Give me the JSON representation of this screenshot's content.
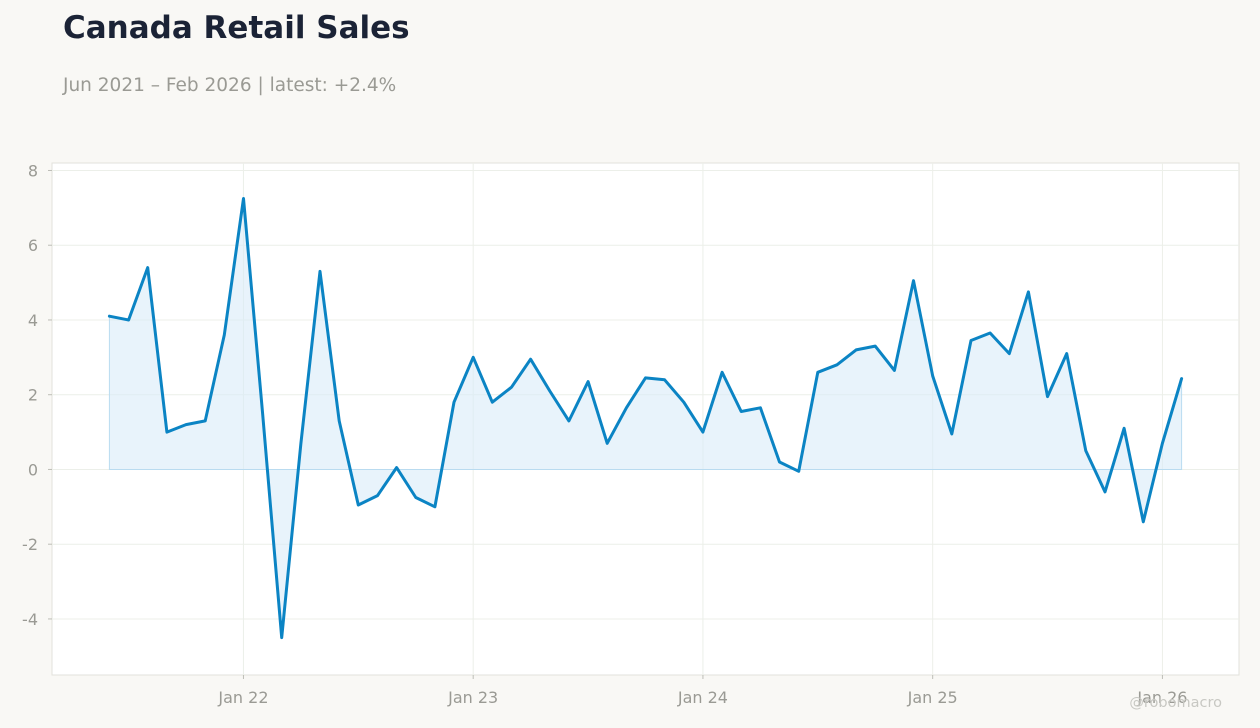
{
  "title": "Canada Retail Sales",
  "subtitle": "Jun 2021 – Feb 2026 | latest: +2.4%",
  "watermark": "@robomacro",
  "colors": {
    "line": "#0b84c4",
    "fill": "#d9ebf8",
    "background": "#f9f8f5",
    "plot_background": "#ffffff",
    "grid": "#ecefe9"
  },
  "chart_data": {
    "type": "area",
    "x": [
      "2021-06",
      "2021-07",
      "2021-08",
      "2021-09",
      "2021-10",
      "2021-11",
      "2021-12",
      "2022-01",
      "2022-02",
      "2022-03",
      "2022-04",
      "2022-05",
      "2022-06",
      "2022-07",
      "2022-08",
      "2022-09",
      "2022-10",
      "2022-11",
      "2022-12",
      "2023-01",
      "2023-02",
      "2023-03",
      "2023-04",
      "2023-05",
      "2023-06",
      "2023-07",
      "2023-08",
      "2023-09",
      "2023-10",
      "2023-11",
      "2023-12",
      "2024-01",
      "2024-02",
      "2024-03",
      "2024-04",
      "2024-05",
      "2024-06",
      "2024-07",
      "2024-08",
      "2024-09",
      "2024-10",
      "2024-11",
      "2024-12",
      "2025-01",
      "2025-02",
      "2025-03",
      "2025-04",
      "2025-05",
      "2025-06",
      "2025-07",
      "2025-08",
      "2025-09",
      "2025-10",
      "2025-11",
      "2025-12",
      "2026-01",
      "2026-02"
    ],
    "y": [
      4.1,
      4.0,
      5.4,
      1.0,
      1.2,
      1.3,
      3.6,
      7.25,
      1.5,
      -4.5,
      0.7,
      5.3,
      1.3,
      -0.95,
      -0.7,
      0.05,
      -0.75,
      -1.0,
      1.8,
      3.0,
      1.8,
      2.2,
      2.95,
      2.1,
      1.3,
      2.35,
      0.7,
      1.65,
      2.45,
      2.4,
      1.8,
      1.0,
      2.6,
      1.55,
      1.65,
      0.2,
      -0.05,
      2.6,
      2.8,
      3.2,
      3.3,
      2.65,
      5.05,
      2.5,
      0.95,
      3.45,
      3.65,
      3.1,
      4.75,
      1.95,
      3.1,
      0.5,
      -0.6,
      1.1,
      -1.4,
      0.7,
      2.43
    ],
    "x_ticks": [
      "Jan 22",
      "Jan 23",
      "Jan 24",
      "Jan 25",
      "Jan 26"
    ],
    "x_tick_dates": [
      "2022-01",
      "2023-01",
      "2024-01",
      "2025-01",
      "2026-01"
    ],
    "y_ticks": [
      8,
      6,
      4,
      2,
      0,
      -2,
      -4
    ],
    "ylim": [
      -5.5,
      8.2
    ],
    "xlim": [
      "2021-03",
      "2026-05"
    ],
    "grid": true,
    "title": "Canada Retail Sales",
    "xlabel": "",
    "ylabel": ""
  }
}
